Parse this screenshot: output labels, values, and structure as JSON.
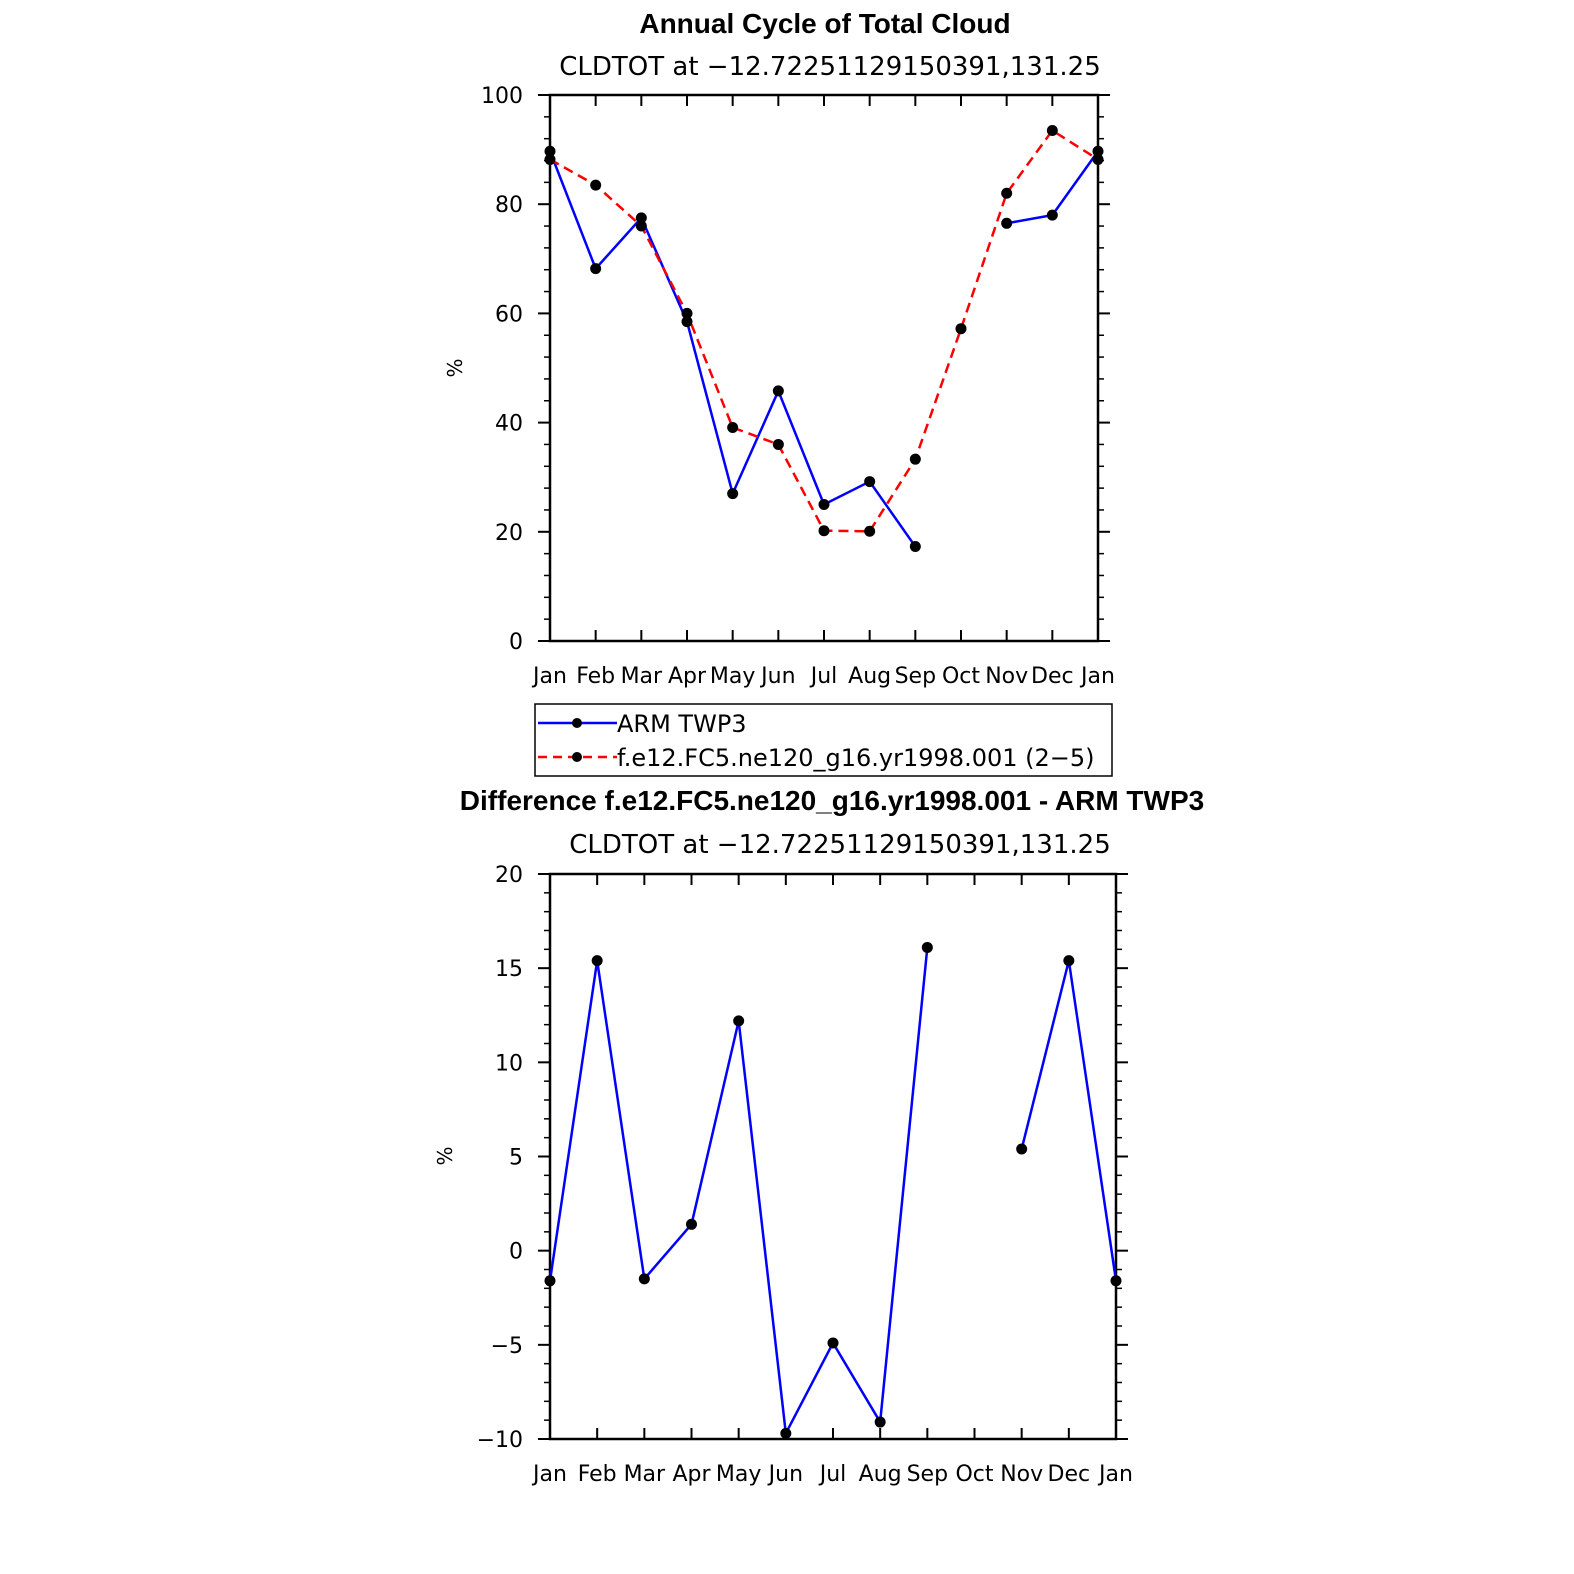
{
  "chart_data": [
    {
      "type": "line",
      "title": "Annual Cycle of Total Cloud",
      "subtitle": "CLDTOT at −12.72251129150391,131.25",
      "xlabel": "",
      "ylabel": "%",
      "categories": [
        "Jan",
        "Feb",
        "Mar",
        "Apr",
        "May",
        "Jun",
        "Jul",
        "Aug",
        "Sep",
        "Oct",
        "Nov",
        "Dec",
        "Jan"
      ],
      "ylim": [
        0,
        100
      ],
      "yticks": [
        0,
        20,
        40,
        60,
        80,
        100
      ],
      "ytick_labels": [
        "0",
        "20",
        "40",
        "60",
        "80",
        "100"
      ],
      "grid": false,
      "legend_placement": "bottom",
      "series": [
        {
          "name": "ARM TWP3",
          "color": "#0000ff",
          "style": "solid",
          "values": [
            89.7,
            68.2,
            77.5,
            58.5,
            27.0,
            45.8,
            25.0,
            29.2,
            17.3,
            null,
            76.5,
            78.0,
            89.7
          ]
        },
        {
          "name": "f.e12.FC5.ne120_g16.yr1998.001 (2−5)",
          "color": "#ff0000",
          "style": "dashed",
          "values": [
            88.2,
            83.5,
            76.0,
            60.0,
            39.1,
            36.0,
            20.2,
            20.1,
            33.3,
            57.2,
            82.0,
            93.5,
            88.2
          ]
        }
      ]
    },
    {
      "type": "line",
      "title": "Difference f.e12.FC5.ne120_g16.yr1998.001 - ARM TWP3",
      "subtitle": "CLDTOT at −12.72251129150391,131.25",
      "xlabel": "",
      "ylabel": "%",
      "categories": [
        "Jan",
        "Feb",
        "Mar",
        "Apr",
        "May",
        "Jun",
        "Jul",
        "Aug",
        "Sep",
        "Oct",
        "Nov",
        "Dec",
        "Jan"
      ],
      "ylim": [
        -10,
        20
      ],
      "yticks": [
        -10,
        -5,
        0,
        5,
        10,
        15,
        20
      ],
      "ytick_labels": [
        "−10",
        "−5",
        "0",
        "5",
        "10",
        "15",
        "20"
      ],
      "grid": false,
      "series": [
        {
          "name": "",
          "color": "#0000ff",
          "style": "solid",
          "values": [
            -1.6,
            15.4,
            -1.5,
            1.4,
            12.2,
            -9.7,
            -4.9,
            -9.1,
            16.1,
            null,
            5.4,
            15.4,
            -1.6
          ]
        }
      ]
    }
  ]
}
